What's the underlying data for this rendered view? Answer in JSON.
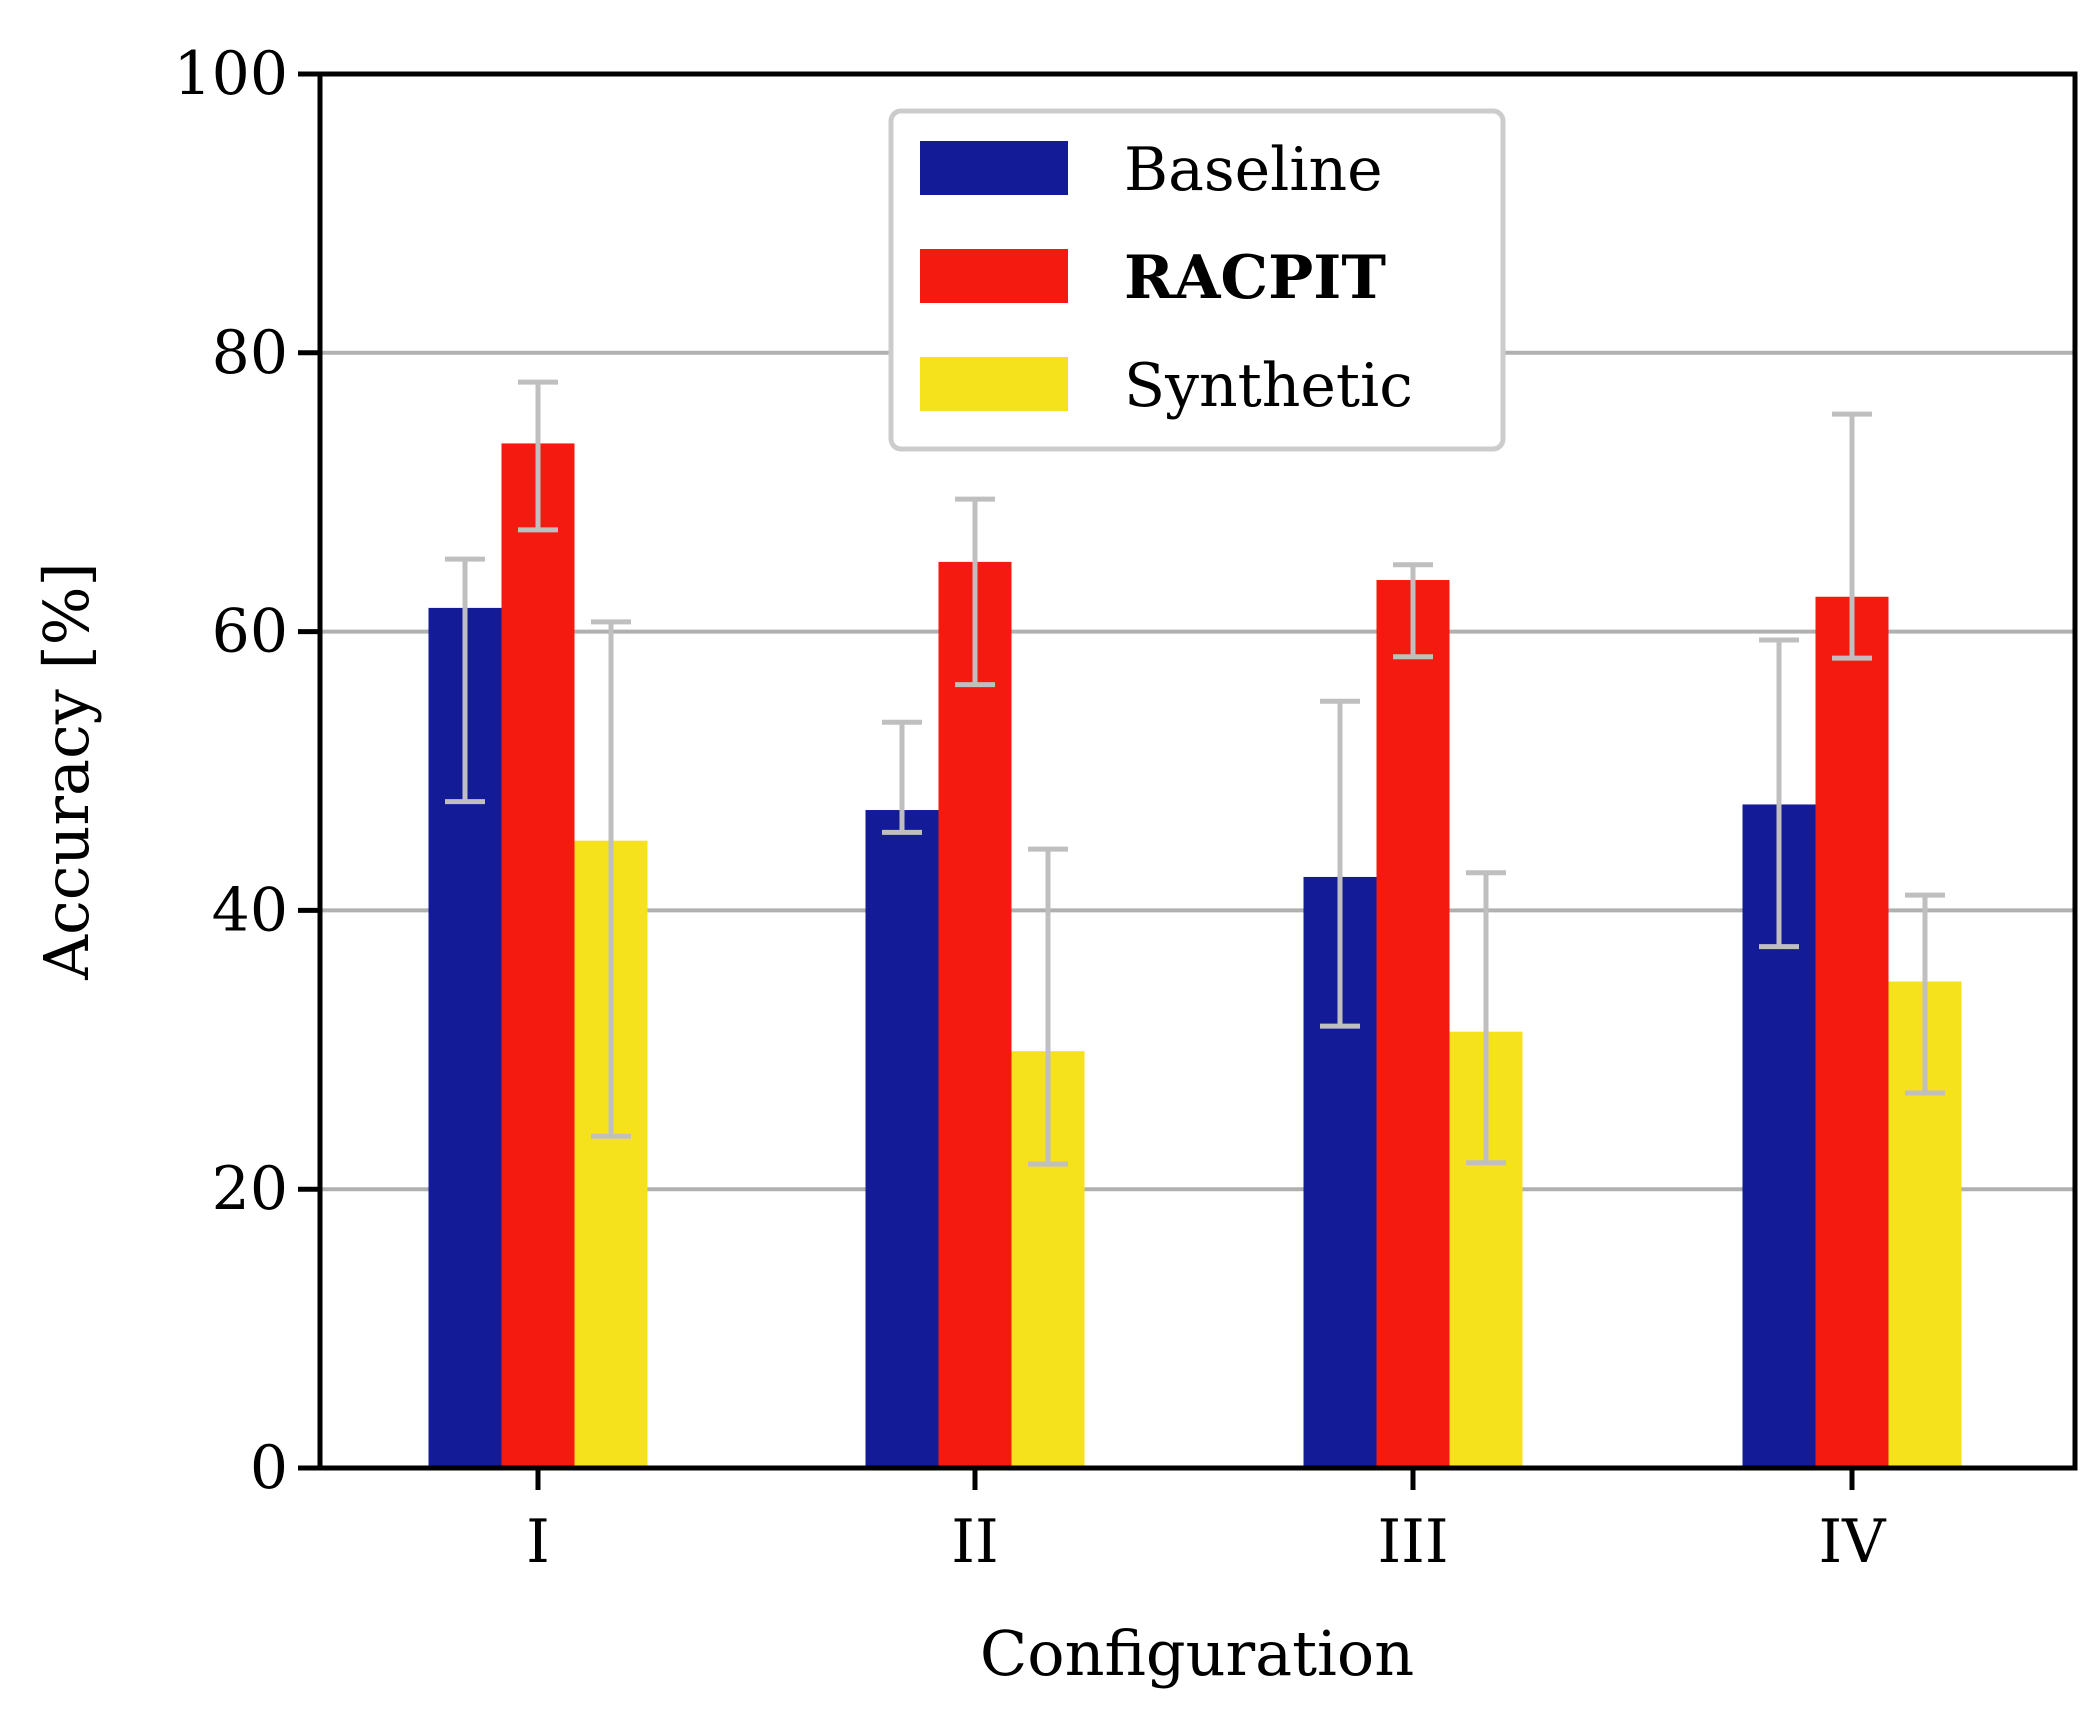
{
  "chart_data": {
    "type": "bar",
    "title": "",
    "xlabel": "Configuration",
    "ylabel": "Accuracy [%]",
    "ylim": [
      0,
      100
    ],
    "yticks": [
      0,
      20,
      40,
      60,
      80,
      100
    ],
    "grid": "y-major",
    "categories": [
      "I",
      "II",
      "III",
      "IV"
    ],
    "legend": {
      "placement": "top-center",
      "entries": [
        "Baseline",
        "RACPIT",
        "Synthetic"
      ],
      "bold_entry": "RACPIT"
    },
    "series": [
      {
        "name": "Baseline",
        "color": "#131c96",
        "values": [
          61.7,
          47.2,
          42.4,
          47.6
        ],
        "err_low": [
          47.8,
          45.6,
          31.7,
          37.4
        ],
        "err_high": [
          65.2,
          53.5,
          55.0,
          59.4
        ]
      },
      {
        "name": "RACPIT",
        "color": "#f41a10",
        "values": [
          73.5,
          65.0,
          63.7,
          62.5
        ],
        "err_low": [
          67.3,
          56.2,
          58.2,
          58.1
        ],
        "err_high": [
          77.9,
          69.5,
          64.8,
          75.6
        ]
      },
      {
        "name": "Synthetic",
        "color": "#f6e11d",
        "values": [
          45.0,
          29.9,
          31.3,
          34.9
        ],
        "err_low": [
          23.8,
          21.8,
          21.9,
          26.9
        ],
        "err_high": [
          60.7,
          44.4,
          42.7,
          41.1
        ]
      }
    ],
    "error_bar_color": "#bfbfbf",
    "grid_color": "#b0b0b0"
  }
}
